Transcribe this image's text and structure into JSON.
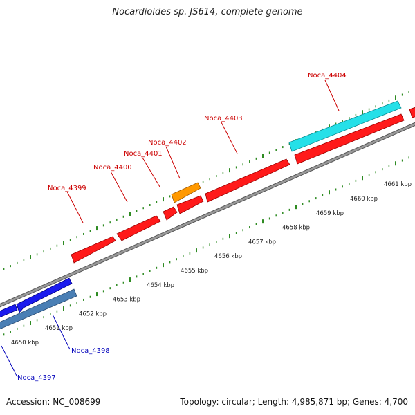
{
  "title": "Nocardioides sp. JS614, complete genome",
  "footer": {
    "accession": "Accession: NC_008699",
    "summary": "Topology: circular; Length: 4,985,871 bp; Genes: 4,700"
  },
  "colors": {
    "backbone": "#8c8c8c",
    "tick": "#2e8b22",
    "forward_gene": "#ff1a1a",
    "highlight_gene": "#ff9900",
    "rna_gene": "#25e0e8",
    "reverse_gene": "#1a1aee",
    "reverse_cds": "#4a7fb5",
    "forward_label": "#cc0000",
    "reverse_label": "#0000bb"
  },
  "scale_labels": [
    "4650 kbp",
    "4651 kbp",
    "4652 kbp",
    "4653 kbp",
    "4654 kbp",
    "4655 kbp",
    "4656 kbp",
    "4657 kbp",
    "4658 kbp",
    "4659 kbp",
    "4660 kbp",
    "4661 kbp"
  ],
  "genes": [
    {
      "label": "Noca_4397",
      "strand": "reverse"
    },
    {
      "label": "Noca_4398",
      "strand": "reverse"
    },
    {
      "label": "Noca_4399",
      "strand": "forward"
    },
    {
      "label": "Noca_4400",
      "strand": "forward"
    },
    {
      "label": "Noca_4401",
      "strand": "forward"
    },
    {
      "label": "Noca_4402",
      "strand": "forward"
    },
    {
      "label": "Noca_4403",
      "strand": "forward"
    },
    {
      "label": "Noca_4404",
      "strand": "forward"
    }
  ]
}
